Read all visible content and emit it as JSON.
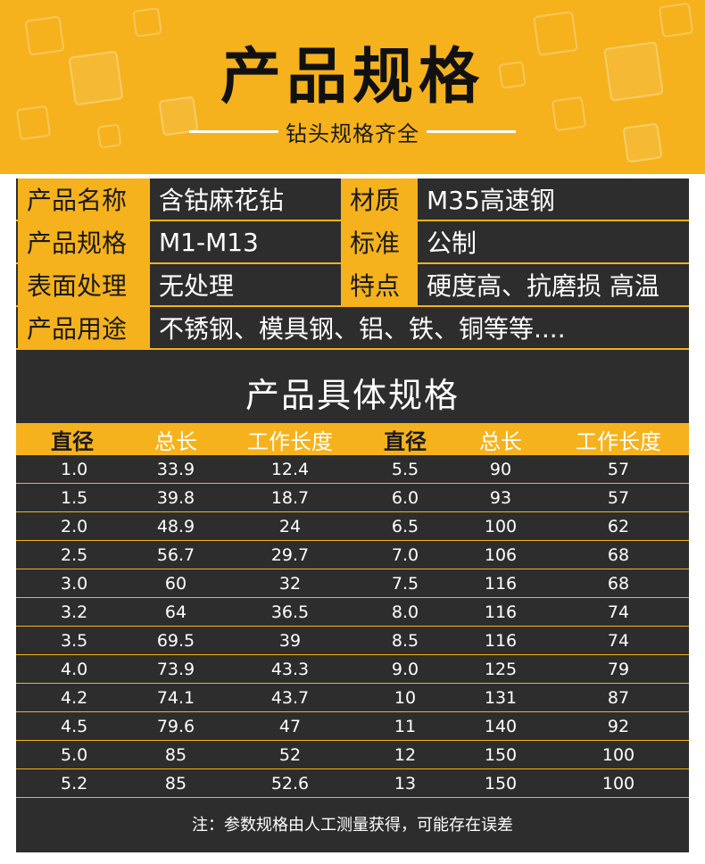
{
  "header": {
    "title": "产品规格",
    "subtitle": "钻头规格齐全"
  },
  "info": {
    "rows": [
      {
        "label1": "产品名称",
        "value1": "含钴麻花钻",
        "label2": "材质",
        "value2": "M35高速钢"
      },
      {
        "label1": "产品规格",
        "value1": "M1-M13",
        "label2": "标准",
        "value2": "公制"
      },
      {
        "label1": "表面处理",
        "value1": "无处理",
        "label2": "特点",
        "value2": "硬度高、抗磨损 高温"
      }
    ],
    "usage": {
      "label": "产品用途",
      "value": "不锈钢、模具钢、铝、铁、铜等等...."
    }
  },
  "spec": {
    "title": "产品具体规格",
    "columns": [
      "直径",
      "总长",
      "工作长度",
      "直径",
      "总长",
      "工作长度"
    ],
    "rows": [
      [
        "1.0",
        "33.9",
        "12.4",
        "5.5",
        "90",
        "57"
      ],
      [
        "1.5",
        "39.8",
        "18.7",
        "6.0",
        "93",
        "57"
      ],
      [
        "2.0",
        "48.9",
        "24",
        "6.5",
        "100",
        "62"
      ],
      [
        "2.5",
        "56.7",
        "29.7",
        "7.0",
        "106",
        "68"
      ],
      [
        "3.0",
        "60",
        "32",
        "7.5",
        "116",
        "68"
      ],
      [
        "3.2",
        "64",
        "36.5",
        "8.0",
        "116",
        "74"
      ],
      [
        "3.5",
        "69.5",
        "39",
        "8.5",
        "116",
        "74"
      ],
      [
        "4.0",
        "73.9",
        "43.3",
        "9.0",
        "125",
        "79"
      ],
      [
        "4.2",
        "74.1",
        "43.7",
        "10",
        "131",
        "87"
      ],
      [
        "4.5",
        "79.6",
        "47",
        "11",
        "140",
        "92"
      ],
      [
        "5.0",
        "85",
        "52",
        "12",
        "150",
        "100"
      ],
      [
        "5.2",
        "85",
        "52.6",
        "13",
        "150",
        "100"
      ]
    ],
    "note": "注：参数规格由人工测量获得，可能存在误差"
  },
  "colors": {
    "accent": "#f5b21c",
    "panel": "#2d2d2d"
  }
}
